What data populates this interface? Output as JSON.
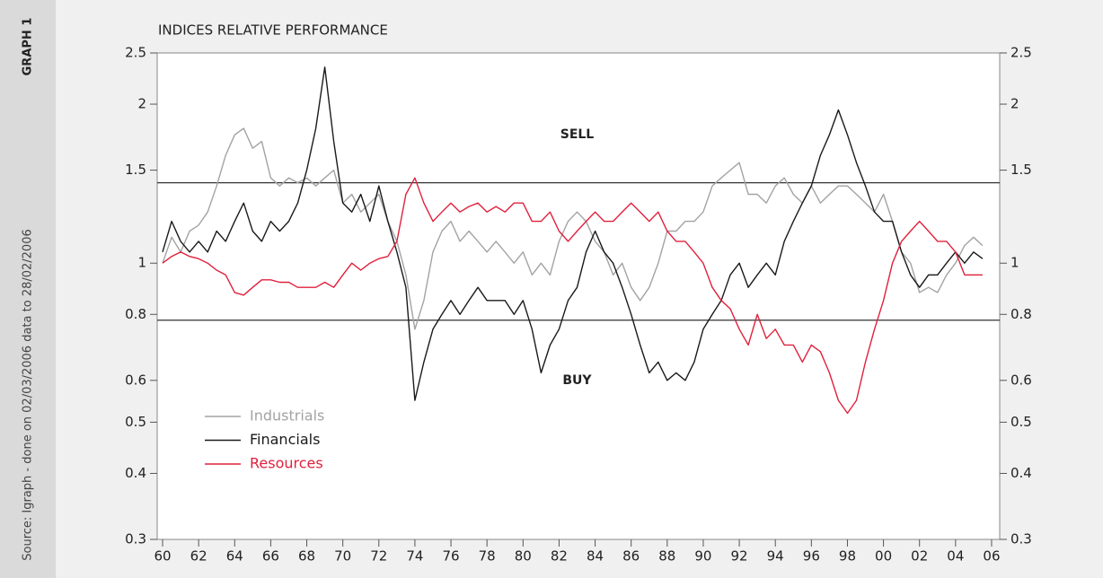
{
  "graph_label": "GRAPH 1",
  "source": "Source: Igraph - done on 02/03/2006 data to 28/02/2006",
  "chart_data": {
    "type": "line",
    "title": "INDICES RELATIVE PERFORMANCE",
    "log_scale": true,
    "annotations": [
      {
        "text": "SELL",
        "x": 1983,
        "y": 1.75
      },
      {
        "text": "BUY",
        "x": 1983,
        "y": 0.6
      }
    ],
    "reference_lines": [
      1.42,
      0.78
    ],
    "xlim": [
      1959.7,
      2006.45
    ],
    "ylim": [
      0.3,
      2.5
    ],
    "y2lim": [
      0.3,
      2.5
    ],
    "yticks": [
      0.3,
      0.4,
      0.5,
      0.6,
      0.8,
      1,
      1.5,
      2,
      2.5
    ],
    "y2ticks": [
      0.3,
      0.4,
      0.5,
      0.6,
      0.8,
      1,
      1.5,
      2,
      2.5
    ],
    "xticks": [
      {
        "value": 1960,
        "label": "60"
      },
      {
        "value": 1962,
        "label": "62"
      },
      {
        "value": 1964,
        "label": "64"
      },
      {
        "value": 1966,
        "label": "66"
      },
      {
        "value": 1968,
        "label": "68"
      },
      {
        "value": 1970,
        "label": "70"
      },
      {
        "value": 1972,
        "label": "72"
      },
      {
        "value": 1974,
        "label": "74"
      },
      {
        "value": 1976,
        "label": "76"
      },
      {
        "value": 1978,
        "label": "78"
      },
      {
        "value": 1980,
        "label": "80"
      },
      {
        "value": 1982,
        "label": "82"
      },
      {
        "value": 1984,
        "label": "84"
      },
      {
        "value": 1986,
        "label": "86"
      },
      {
        "value": 1988,
        "label": "88"
      },
      {
        "value": 1990,
        "label": "90"
      },
      {
        "value": 1992,
        "label": "92"
      },
      {
        "value": 1994,
        "label": "94"
      },
      {
        "value": 1996,
        "label": "96"
      },
      {
        "value": 1998,
        "label": "98"
      },
      {
        "value": 2000,
        "label": "00"
      },
      {
        "value": 2002,
        "label": "02"
      },
      {
        "value": 2004,
        "label": "04"
      },
      {
        "value": 2006,
        "label": "06"
      }
    ],
    "x": [
      1960,
      1960.5,
      1961,
      1961.5,
      1962,
      1962.5,
      1963,
      1963.5,
      1964,
      1964.5,
      1965,
      1965.5,
      1966,
      1966.5,
      1967,
      1967.5,
      1968,
      1968.5,
      1969,
      1969.5,
      1970,
      1970.5,
      1971,
      1971.5,
      1972,
      1972.5,
      1973,
      1973.5,
      1974,
      1974.5,
      1975,
      1975.5,
      1976,
      1976.5,
      1977,
      1977.5,
      1978,
      1978.5,
      1979,
      1979.5,
      1980,
      1980.5,
      1981,
      1981.5,
      1982,
      1982.5,
      1983,
      1983.5,
      1984,
      1984.5,
      1985,
      1985.5,
      1986,
      1986.5,
      1987,
      1987.5,
      1988,
      1988.5,
      1989,
      1989.5,
      1990,
      1990.5,
      1991,
      1991.5,
      1992,
      1992.5,
      1993,
      1993.5,
      1994,
      1994.5,
      1995,
      1995.5,
      1996,
      1996.5,
      1997,
      1997.5,
      1998,
      1998.5,
      1999,
      1999.5,
      2000,
      2000.5,
      2001,
      2001.5,
      2002,
      2002.5,
      2003,
      2003.5,
      2004,
      2004.5,
      2005,
      2005.5
    ],
    "series": [
      {
        "name": "Industrials",
        "color": "#a3a3a3",
        "values": [
          1.0,
          1.12,
          1.05,
          1.15,
          1.18,
          1.25,
          1.4,
          1.6,
          1.75,
          1.8,
          1.65,
          1.7,
          1.45,
          1.4,
          1.45,
          1.42,
          1.45,
          1.4,
          1.45,
          1.5,
          1.3,
          1.35,
          1.25,
          1.3,
          1.35,
          1.2,
          1.1,
          0.95,
          0.75,
          0.85,
          1.05,
          1.15,
          1.2,
          1.1,
          1.15,
          1.1,
          1.05,
          1.1,
          1.05,
          1.0,
          1.05,
          0.95,
          1.0,
          0.95,
          1.1,
          1.2,
          1.25,
          1.2,
          1.1,
          1.05,
          0.95,
          1.0,
          0.9,
          0.85,
          0.9,
          1.0,
          1.15,
          1.15,
          1.2,
          1.2,
          1.25,
          1.4,
          1.45,
          1.5,
          1.55,
          1.35,
          1.35,
          1.3,
          1.4,
          1.45,
          1.35,
          1.3,
          1.4,
          1.3,
          1.35,
          1.4,
          1.4,
          1.35,
          1.3,
          1.25,
          1.35,
          1.2,
          1.05,
          1.0,
          0.88,
          0.9,
          0.88,
          0.95,
          1.0,
          1.08,
          1.12,
          1.08
        ]
      },
      {
        "name": "Financials",
        "color": "#1a1a1a",
        "values": [
          1.05,
          1.2,
          1.1,
          1.05,
          1.1,
          1.05,
          1.15,
          1.1,
          1.2,
          1.3,
          1.15,
          1.1,
          1.2,
          1.15,
          1.2,
          1.3,
          1.5,
          1.8,
          2.35,
          1.7,
          1.3,
          1.25,
          1.35,
          1.2,
          1.4,
          1.2,
          1.05,
          0.9,
          0.55,
          0.65,
          0.75,
          0.8,
          0.85,
          0.8,
          0.85,
          0.9,
          0.85,
          0.85,
          0.85,
          0.8,
          0.85,
          0.75,
          0.62,
          0.7,
          0.75,
          0.85,
          0.9,
          1.05,
          1.15,
          1.05,
          1.0,
          0.9,
          0.8,
          0.7,
          0.62,
          0.65,
          0.6,
          0.62,
          0.6,
          0.65,
          0.75,
          0.8,
          0.85,
          0.95,
          1.0,
          0.9,
          0.95,
          1.0,
          0.95,
          1.1,
          1.2,
          1.3,
          1.4,
          1.6,
          1.75,
          1.95,
          1.75,
          1.55,
          1.4,
          1.25,
          1.2,
          1.2,
          1.05,
          0.95,
          0.9,
          0.95,
          0.95,
          1.0,
          1.05,
          1.0,
          1.05,
          1.02
        ]
      },
      {
        "name": "Resources",
        "color": "#e0203c",
        "values": [
          1.0,
          1.03,
          1.05,
          1.03,
          1.02,
          1.0,
          0.97,
          0.95,
          0.88,
          0.87,
          0.9,
          0.93,
          0.93,
          0.92,
          0.92,
          0.9,
          0.9,
          0.9,
          0.92,
          0.9,
          0.95,
          1.0,
          0.97,
          1.0,
          1.02,
          1.03,
          1.1,
          1.35,
          1.45,
          1.3,
          1.2,
          1.25,
          1.3,
          1.25,
          1.28,
          1.3,
          1.25,
          1.28,
          1.25,
          1.3,
          1.3,
          1.2,
          1.2,
          1.25,
          1.15,
          1.1,
          1.15,
          1.2,
          1.25,
          1.2,
          1.2,
          1.25,
          1.3,
          1.25,
          1.2,
          1.25,
          1.15,
          1.1,
          1.1,
          1.05,
          1.0,
          0.9,
          0.85,
          0.82,
          0.75,
          0.7,
          0.8,
          0.72,
          0.75,
          0.7,
          0.7,
          0.65,
          0.7,
          0.68,
          0.62,
          0.55,
          0.52,
          0.55,
          0.65,
          0.75,
          0.85,
          1.0,
          1.1,
          1.15,
          1.2,
          1.15,
          1.1,
          1.1,
          1.05,
          0.95,
          0.95,
          0.95
        ]
      }
    ]
  }
}
